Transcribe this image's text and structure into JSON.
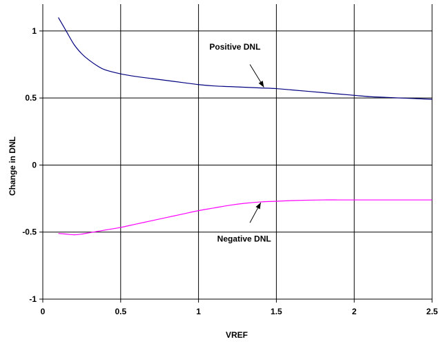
{
  "chart_data": {
    "type": "line",
    "title": "",
    "xlabel": "VREF",
    "ylabel": "Change in DNL",
    "xlim": [
      0,
      2.5
    ],
    "ylim": [
      -1,
      1.2
    ],
    "xticks": [
      0,
      0.5,
      1,
      1.5,
      2,
      2.5
    ],
    "xtick_labels": [
      "0",
      "0.5",
      "1",
      "1.5",
      "2",
      "2.5"
    ],
    "yticks": [
      -1,
      -0.5,
      0,
      0.5,
      1
    ],
    "ytick_labels": [
      "-1",
      "-0.5",
      "0",
      "0.5",
      "1"
    ],
    "grid": true,
    "legend": "none",
    "series": [
      {
        "color": "#000080",
        "x": [
          0.1,
          0.15,
          0.2,
          0.25,
          0.3,
          0.35,
          0.4,
          0.5,
          0.6,
          0.7,
          0.8,
          0.9,
          1.0,
          1.1,
          1.2,
          1.3,
          1.4,
          1.5,
          1.6,
          1.7,
          1.8,
          1.9,
          2.0,
          2.1,
          2.2,
          2.3,
          2.4,
          2.5
        ],
        "y": [
          1.1,
          1.0,
          0.9,
          0.83,
          0.78,
          0.74,
          0.71,
          0.68,
          0.66,
          0.645,
          0.63,
          0.615,
          0.6,
          0.59,
          0.585,
          0.58,
          0.575,
          0.57,
          0.56,
          0.55,
          0.54,
          0.53,
          0.52,
          0.51,
          0.505,
          0.5,
          0.495,
          0.49
        ]
      },
      {
        "color": "#FF00FF",
        "x": [
          0.1,
          0.15,
          0.2,
          0.25,
          0.3,
          0.35,
          0.4,
          0.5,
          0.6,
          0.7,
          0.8,
          0.9,
          1.0,
          1.1,
          1.2,
          1.3,
          1.4,
          1.5,
          1.6,
          1.7,
          1.8,
          1.9,
          2.0,
          2.1,
          2.2,
          2.3,
          2.4,
          2.5
        ],
        "y": [
          -0.51,
          -0.515,
          -0.52,
          -0.515,
          -0.505,
          -0.495,
          -0.485,
          -0.465,
          -0.44,
          -0.415,
          -0.39,
          -0.365,
          -0.34,
          -0.32,
          -0.3,
          -0.285,
          -0.275,
          -0.27,
          -0.265,
          -0.262,
          -0.26,
          -0.26,
          -0.26,
          -0.26,
          -0.26,
          -0.26,
          -0.26,
          -0.26
        ]
      }
    ],
    "annotations": [
      {
        "text": "Positive DNL",
        "point_x": 1.42,
        "point_y": 0.58,
        "from_x": 1.33,
        "from_y": 0.75,
        "label_x": 1.07,
        "label_y": 0.86
      },
      {
        "text": "Negative DNL",
        "point_x": 1.4,
        "point_y": -0.28,
        "from_x": 1.33,
        "from_y": -0.43,
        "label_x": 1.12,
        "label_y": -0.57
      }
    ]
  }
}
